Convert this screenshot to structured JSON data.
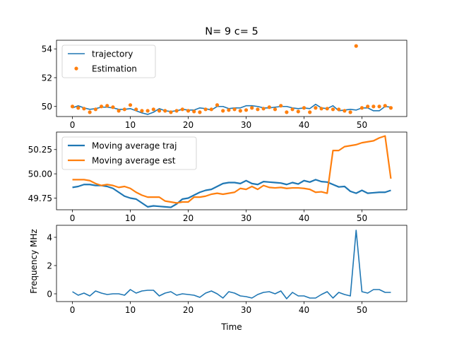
{
  "chart_data": [
    {
      "type": "line",
      "title": "N= 9 c= 5",
      "xlabel": "",
      "ylabel": "",
      "xlim": [
        -2.75,
        57.75
      ],
      "ylim": [
        49.3,
        54.6
      ],
      "xticks": [
        0,
        10,
        20,
        30,
        40,
        50
      ],
      "yticks": [
        50,
        52,
        54
      ],
      "ytick_labels": [
        "50",
        "52",
        "54"
      ],
      "legend_position": "upper-left",
      "series": [
        {
          "name": "trajectory",
          "style": "line",
          "color": "#1f77b4",
          "x": [
            0,
            1,
            2,
            3,
            4,
            5,
            6,
            7,
            8,
            9,
            10,
            11,
            12,
            13,
            14,
            15,
            16,
            17,
            18,
            19,
            20,
            21,
            22,
            23,
            24,
            25,
            26,
            27,
            28,
            29,
            30,
            31,
            32,
            33,
            34,
            35,
            36,
            37,
            38,
            39,
            40,
            41,
            42,
            43,
            44,
            45,
            46,
            47,
            48,
            49,
            50,
            51,
            52,
            53,
            54,
            55
          ],
          "y": [
            49.9,
            50.05,
            49.9,
            49.8,
            49.85,
            49.95,
            49.95,
            49.9,
            49.8,
            49.8,
            49.85,
            49.7,
            49.55,
            49.45,
            49.6,
            49.85,
            49.7,
            49.65,
            49.7,
            49.8,
            49.75,
            49.75,
            49.9,
            49.85,
            49.75,
            50.0,
            50.0,
            49.85,
            49.9,
            49.9,
            50.05,
            50.05,
            50.0,
            49.9,
            49.9,
            49.95,
            50.0,
            50.0,
            49.9,
            49.85,
            49.9,
            49.85,
            50.15,
            49.9,
            49.85,
            50.05,
            49.7,
            49.75,
            49.8,
            49.75,
            49.9,
            49.9,
            49.7,
            49.7,
            50.0,
            49.95
          ]
        },
        {
          "name": "Estimation",
          "style": "points",
          "color": "#ff7f0e",
          "x": [
            0,
            1,
            2,
            3,
            4,
            5,
            6,
            7,
            8,
            9,
            10,
            11,
            12,
            13,
            14,
            15,
            16,
            17,
            18,
            19,
            20,
            21,
            22,
            23,
            24,
            25,
            26,
            27,
            28,
            29,
            30,
            31,
            32,
            33,
            34,
            35,
            36,
            37,
            38,
            39,
            40,
            41,
            42,
            43,
            44,
            45,
            46,
            47,
            48,
            49,
            50,
            51,
            52,
            53,
            54,
            55
          ],
          "y": [
            50.0,
            49.9,
            49.85,
            49.6,
            49.8,
            50.0,
            50.05,
            49.95,
            49.7,
            49.8,
            50.1,
            49.8,
            49.7,
            49.7,
            49.8,
            49.7,
            49.7,
            49.6,
            49.7,
            49.8,
            49.7,
            49.65,
            49.6,
            49.8,
            49.8,
            50.1,
            49.7,
            49.75,
            49.8,
            49.7,
            49.75,
            49.9,
            49.8,
            49.85,
            49.95,
            49.8,
            50.05,
            49.6,
            49.8,
            49.65,
            49.9,
            49.6,
            49.9,
            49.85,
            49.85,
            49.8,
            49.8,
            49.7,
            49.6,
            54.2,
            49.9,
            50.0,
            50.0,
            50.0,
            50.05,
            49.9
          ]
        }
      ]
    },
    {
      "type": "line",
      "title": "",
      "xlabel": "",
      "ylabel": "",
      "xlim": [
        -2.75,
        57.75
      ],
      "ylim": [
        49.63,
        50.43
      ],
      "xticks": [
        0,
        10,
        20,
        30,
        40,
        50
      ],
      "yticks": [
        49.75,
        50.0,
        50.25
      ],
      "ytick_labels": [
        "49.75",
        "50.00",
        "50.25"
      ],
      "legend_position": "upper-left",
      "series": [
        {
          "name": "Moving average traj",
          "style": "line",
          "color": "#1f77b4",
          "x": [
            0,
            1,
            2,
            3,
            4,
            5,
            6,
            7,
            8,
            9,
            10,
            11,
            12,
            13,
            14,
            15,
            16,
            17,
            18,
            19,
            20,
            21,
            22,
            23,
            24,
            25,
            26,
            27,
            28,
            29,
            30,
            31,
            32,
            33,
            34,
            35,
            36,
            37,
            38,
            39,
            40,
            41,
            42,
            43,
            44,
            45,
            46,
            47,
            48,
            49,
            50,
            51,
            52,
            53,
            54,
            55
          ],
          "y": [
            49.86,
            49.87,
            49.89,
            49.89,
            49.88,
            49.88,
            49.87,
            49.85,
            49.81,
            49.77,
            49.75,
            49.74,
            49.7,
            49.66,
            49.67,
            49.665,
            49.66,
            49.655,
            49.69,
            49.74,
            49.75,
            49.78,
            49.81,
            49.83,
            49.84,
            49.87,
            49.9,
            49.91,
            49.91,
            49.9,
            49.93,
            49.9,
            49.89,
            49.92,
            49.915,
            49.91,
            49.905,
            49.89,
            49.91,
            49.895,
            49.93,
            49.915,
            49.94,
            49.92,
            49.915,
            49.89,
            49.865,
            49.87,
            49.82,
            49.8,
            49.83,
            49.8,
            49.805,
            49.81,
            49.81,
            49.83
          ]
        },
        {
          "name": "Moving average est",
          "style": "line",
          "color": "#ff7f0e",
          "x": [
            0,
            1,
            2,
            3,
            4,
            5,
            6,
            7,
            8,
            9,
            10,
            11,
            12,
            13,
            14,
            15,
            16,
            17,
            18,
            19,
            20,
            21,
            22,
            23,
            24,
            25,
            26,
            27,
            28,
            29,
            30,
            31,
            32,
            33,
            34,
            35,
            36,
            37,
            38,
            39,
            40,
            41,
            42,
            43,
            44,
            45,
            46,
            47,
            48,
            49,
            50,
            51,
            52,
            53,
            54,
            55
          ],
          "y": [
            49.94,
            49.94,
            49.94,
            49.93,
            49.9,
            49.88,
            49.89,
            49.88,
            49.86,
            49.87,
            49.85,
            49.81,
            49.78,
            49.76,
            49.76,
            49.76,
            49.72,
            49.71,
            49.7,
            49.71,
            49.71,
            49.76,
            49.76,
            49.77,
            49.79,
            49.8,
            49.79,
            49.8,
            49.81,
            49.85,
            49.84,
            49.87,
            49.84,
            49.88,
            49.86,
            49.855,
            49.86,
            49.85,
            49.855,
            49.855,
            49.85,
            49.84,
            49.81,
            49.815,
            49.8,
            50.24,
            50.24,
            50.28,
            50.29,
            50.3,
            50.32,
            50.33,
            50.34,
            50.37,
            50.39,
            49.95
          ]
        }
      ]
    },
    {
      "type": "line",
      "title": "",
      "xlabel": "Time",
      "ylabel": "Frequency MHz",
      "xlim": [
        -2.75,
        57.75
      ],
      "ylim": [
        -0.55,
        4.85
      ],
      "xticks": [
        0,
        10,
        20,
        30,
        40,
        50
      ],
      "yticks": [
        0,
        2,
        4
      ],
      "ytick_labels": [
        "0",
        "2",
        "4"
      ],
      "series": [
        {
          "name": "",
          "style": "line",
          "color": "#1f77b4",
          "x": [
            0,
            1,
            2,
            3,
            4,
            5,
            6,
            7,
            8,
            9,
            10,
            11,
            12,
            13,
            14,
            15,
            16,
            17,
            18,
            19,
            20,
            21,
            22,
            23,
            24,
            25,
            26,
            27,
            28,
            29,
            30,
            31,
            32,
            33,
            34,
            35,
            36,
            37,
            38,
            39,
            40,
            41,
            42,
            43,
            44,
            45,
            46,
            47,
            48,
            49,
            50,
            51,
            52,
            53,
            54,
            55
          ],
          "y": [
            0.15,
            -0.1,
            0.05,
            -0.15,
            0.2,
            0.05,
            -0.05,
            0.0,
            0.0,
            -0.1,
            0.3,
            0.05,
            0.2,
            0.25,
            0.25,
            -0.15,
            0.05,
            0.15,
            -0.1,
            0.0,
            -0.05,
            -0.1,
            -0.25,
            0.05,
            0.2,
            0.0,
            -0.3,
            0.15,
            0.05,
            -0.15,
            -0.2,
            -0.3,
            -0.05,
            0.1,
            0.15,
            0.0,
            0.2,
            -0.35,
            0.1,
            -0.15,
            -0.15,
            -0.3,
            -0.3,
            -0.05,
            0.15,
            -0.3,
            0.1,
            -0.05,
            -0.15,
            4.5,
            0.15,
            0.05,
            0.3,
            0.3,
            0.1,
            0.1
          ]
        }
      ]
    }
  ]
}
